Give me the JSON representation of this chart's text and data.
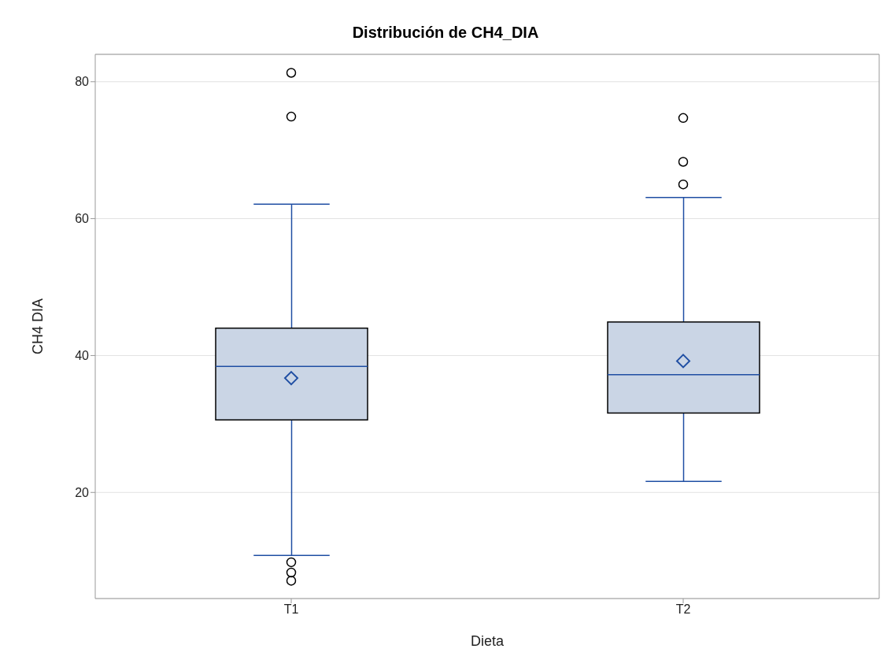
{
  "chart_data": {
    "type": "box",
    "title": "Distribución de CH4_DIA",
    "xlabel": "Dieta",
    "ylabel": "CH4 DIA",
    "categories": [
      "T1",
      "T2"
    ],
    "boxes": [
      {
        "low": 10.8,
        "q1": 30.6,
        "median": 38.4,
        "q3": 44.0,
        "high": 62.1,
        "mean": 36.7,
        "outliers": [
          81.3,
          74.9,
          9.8,
          8.3,
          7.1
        ]
      },
      {
        "low": 21.6,
        "q1": 31.6,
        "median": 37.2,
        "q3": 44.9,
        "high": 63.1,
        "mean": 39.2,
        "outliers": [
          74.7,
          68.3,
          65.0
        ]
      }
    ],
    "color": "#cad5e5",
    "ylim": [
      4.5,
      84
    ],
    "yticks": [
      20,
      40,
      60,
      80
    ],
    "grid": "y",
    "legend": false
  }
}
